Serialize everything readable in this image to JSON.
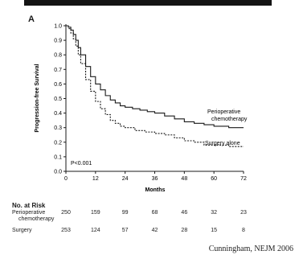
{
  "panel_label": "A",
  "citation": "Cunningham, NEJM 2006",
  "chart_data": {
    "type": "line",
    "title": "",
    "xlabel": "Months",
    "ylabel": "Progression-free Survival",
    "xlim": [
      0,
      72
    ],
    "ylim": [
      0,
      1.0
    ],
    "xticks": [
      0,
      12,
      24,
      36,
      48,
      60,
      72
    ],
    "yticks": [
      "0.0",
      "0.1",
      "0.2",
      "0.3",
      "0.4",
      "0.5",
      "0.6",
      "0.7",
      "0.8",
      "0.9",
      "1.0"
    ],
    "annotation": "P<0.001",
    "series": [
      {
        "name": "Perioperative chemotherapy",
        "line_style": "solid",
        "points": [
          [
            0,
            1.0
          ],
          [
            1,
            0.99
          ],
          [
            2,
            0.97
          ],
          [
            3,
            0.94
          ],
          [
            4,
            0.9
          ],
          [
            5,
            0.85
          ],
          [
            6,
            0.8
          ],
          [
            8,
            0.72
          ],
          [
            10,
            0.65
          ],
          [
            12,
            0.6
          ],
          [
            14,
            0.56
          ],
          [
            16,
            0.52
          ],
          [
            18,
            0.49
          ],
          [
            20,
            0.47
          ],
          [
            22,
            0.45
          ],
          [
            24,
            0.44
          ],
          [
            27,
            0.43
          ],
          [
            30,
            0.42
          ],
          [
            33,
            0.41
          ],
          [
            36,
            0.4
          ],
          [
            40,
            0.38
          ],
          [
            44,
            0.36
          ],
          [
            48,
            0.34
          ],
          [
            52,
            0.33
          ],
          [
            56,
            0.32
          ],
          [
            60,
            0.31
          ],
          [
            66,
            0.3
          ],
          [
            72,
            0.3
          ]
        ]
      },
      {
        "name": "Surgery alone",
        "line_style": "dashed",
        "points": [
          [
            0,
            1.0
          ],
          [
            1,
            0.98
          ],
          [
            2,
            0.95
          ],
          [
            3,
            0.91
          ],
          [
            4,
            0.86
          ],
          [
            5,
            0.8
          ],
          [
            6,
            0.74
          ],
          [
            8,
            0.63
          ],
          [
            10,
            0.55
          ],
          [
            12,
            0.48
          ],
          [
            14,
            0.43
          ],
          [
            16,
            0.39
          ],
          [
            18,
            0.35
          ],
          [
            20,
            0.33
          ],
          [
            22,
            0.31
          ],
          [
            24,
            0.3
          ],
          [
            28,
            0.28
          ],
          [
            32,
            0.27
          ],
          [
            36,
            0.26
          ],
          [
            40,
            0.25
          ],
          [
            44,
            0.23
          ],
          [
            48,
            0.21
          ],
          [
            52,
            0.2
          ],
          [
            56,
            0.18
          ],
          [
            60,
            0.18
          ],
          [
            66,
            0.17
          ],
          [
            72,
            0.17
          ]
        ]
      }
    ]
  },
  "risk_table": {
    "title": "No. at Risk",
    "rows": [
      {
        "label_line1": "Perioperative",
        "label_line2": "chemotherapy",
        "values": [
          "250",
          "159",
          "99",
          "68",
          "46",
          "32",
          "23"
        ]
      },
      {
        "label_line1": "Surgery",
        "label_line2": "",
        "values": [
          "253",
          "124",
          "57",
          "42",
          "28",
          "15",
          "8"
        ]
      }
    ]
  }
}
